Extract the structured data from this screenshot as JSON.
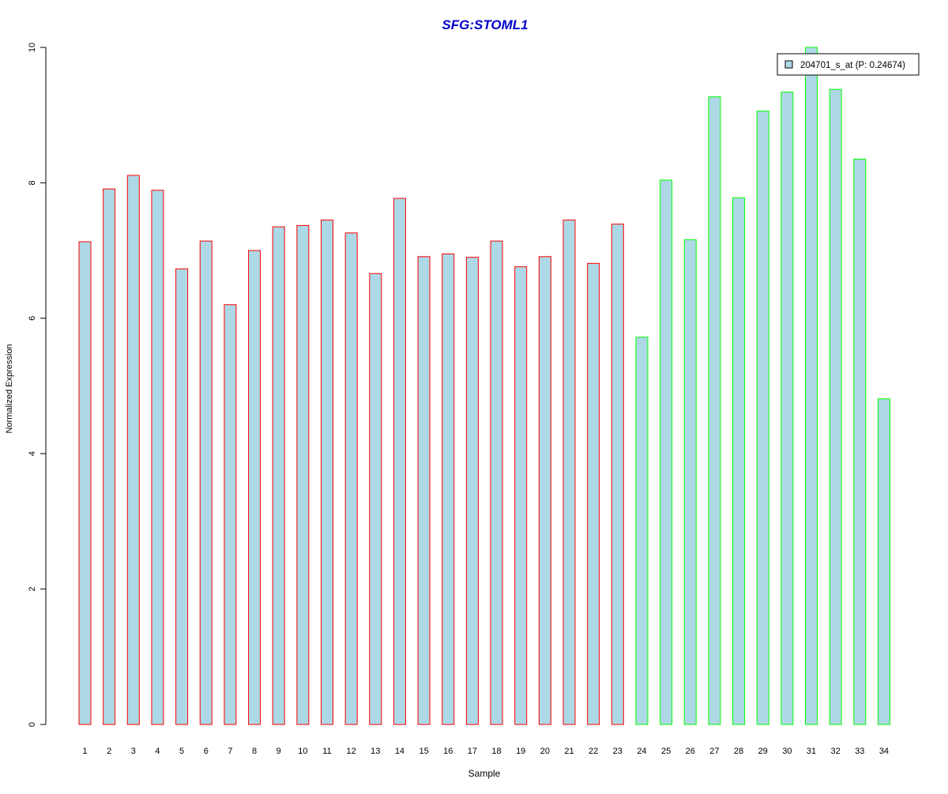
{
  "chart_data": {
    "type": "bar",
    "title": "SFG:STOML1",
    "xlabel": "Sample",
    "ylabel": "Normalized Expression",
    "ylim": [
      0,
      10
    ],
    "yticks": [
      0,
      2,
      4,
      6,
      8,
      10
    ],
    "grid": false,
    "categories": [
      "1",
      "2",
      "3",
      "4",
      "5",
      "6",
      "7",
      "8",
      "9",
      "10",
      "11",
      "12",
      "13",
      "14",
      "15",
      "16",
      "17",
      "18",
      "19",
      "20",
      "21",
      "22",
      "23",
      "24",
      "25",
      "26",
      "27",
      "28",
      "29",
      "30",
      "31",
      "32",
      "33",
      "34"
    ],
    "series": [
      {
        "name": "204701_s_at (P: 0.24674)",
        "values": [
          7.13,
          7.91,
          8.11,
          7.89,
          6.73,
          7.14,
          6.2,
          7.0,
          7.35,
          7.37,
          7.45,
          7.26,
          6.66,
          7.77,
          6.91,
          6.95,
          6.9,
          7.14,
          6.76,
          6.91,
          7.45,
          6.81,
          7.39,
          5.72,
          8.04,
          7.16,
          9.27,
          7.78,
          9.06,
          9.34,
          10.0,
          9.38,
          8.35,
          4.81
        ]
      }
    ],
    "fill_color": "#add8e6",
    "group_colors": [
      "#ff0000",
      "#00ff00"
    ],
    "group_split_after": 23,
    "title_color": "#0000cc",
    "legend": {
      "position": "top-right",
      "label": "204701_s_at (P: 0.24674)"
    }
  }
}
